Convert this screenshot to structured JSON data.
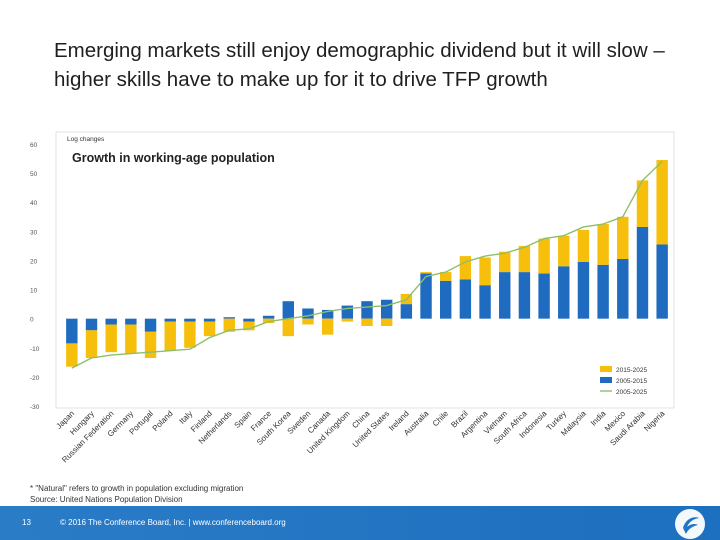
{
  "slide": {
    "title": "Emerging markets still enjoy demographic dividend but it will slow – higher skills have to make up for it to drive TFP growth",
    "footnote": "* \"Natural\" refers to growth in population excluding migration",
    "source": "Source: United Nations Population Division",
    "page_number": "13",
    "copyright": "© 2016 The Conference Board, Inc.  |  www.conferenceboard.org"
  },
  "colors": {
    "series_2015_2025": "#f5bf0b",
    "series_2005_2015": "#1f6bbf",
    "series_2005_2025": "#8fbf6a",
    "footer": "#2275c4"
  },
  "chart_data": {
    "type": "bar",
    "stacked": true,
    "title": "Growth in working-age population",
    "ylabel": "Log changes",
    "ylim": [
      -30,
      60
    ],
    "yticks": [
      60,
      50,
      40,
      30,
      20,
      10,
      0,
      -10,
      -20,
      -30
    ],
    "grid": false,
    "legend_position": "bottom-right",
    "categories": [
      "Japan",
      "Hungary",
      "Russian Federation",
      "Germany",
      "Portugal",
      "Poland",
      "Italy",
      "Finland",
      "Netherlands",
      "Spain",
      "France",
      "South Korea",
      "Sweden",
      "Canada",
      "United Kingdom",
      "China",
      "United States",
      "Ireland",
      "Australia",
      "Chile",
      "Brazil",
      "Argentina",
      "Vietnam",
      "South Africa",
      "Indonesia",
      "Turkey",
      "Malaysia",
      "India",
      "Mexico",
      "Saudi Arabia",
      "Nigeria"
    ],
    "series": [
      {
        "name": "2015-2025",
        "kind": "bar",
        "values": [
          -8,
          -9.5,
          -9.5,
          -10,
          -9,
          -10,
          -9,
          -5,
          -4.5,
          -3,
          -1.5,
          -6,
          -2,
          -5.5,
          -1,
          -2.5,
          -2.5,
          3.5,
          0.5,
          3,
          8,
          9.5,
          7,
          9,
          12,
          10.5,
          11,
          14,
          14.5,
          16,
          29
        ]
      },
      {
        "name": "2005-2015",
        "kind": "bar",
        "values": [
          -8.5,
          -4,
          -2,
          -2,
          -4.5,
          -1,
          -1,
          -1,
          0.5,
          -1,
          1,
          6,
          3.5,
          3,
          4.5,
          6,
          6.5,
          5,
          15.5,
          13,
          13.5,
          11.5,
          16,
          16,
          15.5,
          18,
          19.5,
          18.5,
          20.5,
          31.5,
          25.5
        ]
      },
      {
        "name": "2005-2025",
        "kind": "line",
        "values": [
          -17,
          -13.5,
          -12.5,
          -12,
          -11.5,
          -11,
          -10.5,
          -6.5,
          -4,
          -3.5,
          -1,
          0,
          1,
          2.5,
          3.5,
          4,
          4.5,
          6.5,
          14.5,
          16,
          19.5,
          21.5,
          22.5,
          24.5,
          27.5,
          28.5,
          31.5,
          32.5,
          35,
          47.5,
          54
        ]
      }
    ]
  }
}
